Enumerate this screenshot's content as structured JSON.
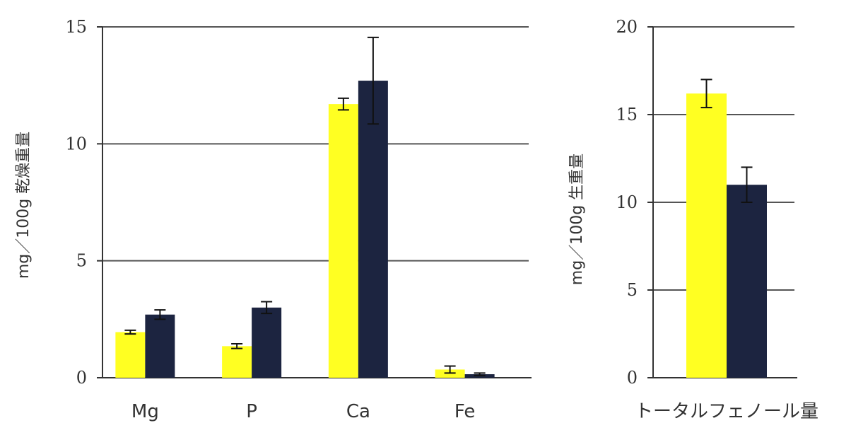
{
  "chart_data": [
    {
      "type": "bar",
      "title": "",
      "ylabel": "mg／100g 乾燥重量",
      "xlabel": "",
      "categories": [
        "Mg",
        "P",
        "Ca",
        "Fe"
      ],
      "ylim": [
        0,
        15
      ],
      "yticks": [
        "0",
        "5",
        "10",
        "15"
      ],
      "grid": true,
      "series": [
        {
          "color": "#ffff22",
          "values": [
            1.95,
            1.35,
            11.7,
            0.35
          ],
          "errors": [
            0.08,
            0.1,
            0.25,
            0.15
          ]
        },
        {
          "color": "#1c2440",
          "values": [
            2.7,
            3.0,
            12.7,
            0.15
          ],
          "errors": [
            0.2,
            0.25,
            1.85,
            0.05
          ]
        }
      ]
    },
    {
      "type": "bar",
      "title": "",
      "ylabel": "mg／100g 生重量",
      "xlabel": "",
      "categories": [
        "トータルフェノール量"
      ],
      "ylim": [
        0,
        20
      ],
      "yticks": [
        "0",
        "5",
        "10",
        "15",
        "20"
      ],
      "grid": true,
      "series": [
        {
          "color": "#ffff22",
          "values": [
            16.2
          ],
          "errors": [
            0.8
          ]
        },
        {
          "color": "#1c2440",
          "values": [
            11.0
          ],
          "errors": [
            1.0
          ]
        }
      ]
    }
  ]
}
